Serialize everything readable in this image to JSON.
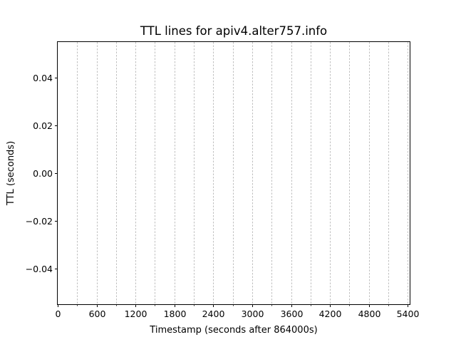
{
  "chart_data": {
    "type": "line",
    "title": "TTL lines for apiv4.alter757.info",
    "xlabel": "Timestamp (seconds after 864000s)",
    "ylabel": "TTL (seconds)",
    "xlim": [
      0,
      5430
    ],
    "ylim": [
      -0.055,
      0.055
    ],
    "x_ticks": [
      0,
      600,
      1200,
      1800,
      2400,
      3000,
      3600,
      4200,
      4800,
      5400
    ],
    "x_tick_labels": [
      "0",
      "600",
      "1200",
      "1800",
      "2400",
      "3000",
      "3600",
      "4200",
      "4800",
      "5400"
    ],
    "x_minor_ticks": [
      300,
      900,
      1500,
      2100,
      2700,
      3300,
      3900,
      4500,
      5100
    ],
    "y_ticks": [
      0.04,
      0.02,
      0.0,
      -0.02,
      -0.04
    ],
    "y_tick_labels": [
      "0.04",
      "0.02",
      "0.00",
      "−0.02",
      "−0.04"
    ],
    "vertical_gridlines": [
      300,
      600,
      900,
      1200,
      1500,
      1800,
      2100,
      2400,
      2700,
      3000,
      3300,
      3600,
      3900,
      4200,
      4500,
      4800,
      5100,
      5400
    ],
    "grid": "vertical dashed",
    "series": []
  }
}
